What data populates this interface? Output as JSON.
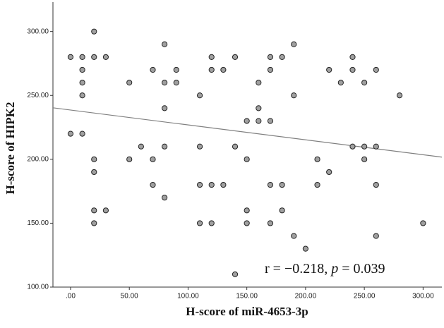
{
  "chart_data": {
    "type": "scatter",
    "x_label": "H-score of miR-4653-3p",
    "y_label": "H-score of HIPK2",
    "annotation": [
      "r = −0.218, ",
      "p",
      " = 0.039"
    ],
    "point_color": "#a0a0a0",
    "line_color": "#808080",
    "xlim": [
      -15,
      316
    ],
    "ylim": [
      100,
      323
    ],
    "xticks": [
      {
        "value": 0,
        "label": ".00"
      },
      {
        "value": 50,
        "label": "50.00"
      },
      {
        "value": 100,
        "label": "100.00"
      },
      {
        "value": 150,
        "label": "150.00"
      },
      {
        "value": 200,
        "label": "200.00"
      },
      {
        "value": 250,
        "label": "250.00"
      },
      {
        "value": 300,
        "label": "300.00"
      }
    ],
    "yticks": [
      {
        "value": 100,
        "label": "100.00"
      },
      {
        "value": 150,
        "label": "150.00"
      },
      {
        "value": 200,
        "label": "200.00"
      },
      {
        "value": 250,
        "label": "250.00"
      },
      {
        "value": 300,
        "label": "300.00"
      }
    ],
    "fit_line": {
      "x": [
        -15,
        316
      ],
      "y": [
        240.3,
        201.7
      ]
    },
    "x": [
      0,
      0,
      10,
      10,
      10,
      10,
      10,
      20,
      20,
      20,
      20,
      20,
      20,
      30,
      30,
      50,
      50,
      60,
      70,
      70,
      70,
      80,
      80,
      80,
      80,
      80,
      90,
      90,
      110,
      110,
      110,
      110,
      120,
      120,
      120,
      120,
      130,
      130,
      140,
      140,
      140,
      150,
      150,
      150,
      150,
      160,
      160,
      160,
      170,
      170,
      170,
      170,
      170,
      180,
      180,
      180,
      190,
      190,
      190,
      200,
      210,
      210,
      220,
      220,
      230,
      240,
      240,
      240,
      250,
      250,
      250,
      260,
      260,
      260,
      260,
      280,
      300
    ],
    "y": [
      280,
      220,
      280,
      270,
      260,
      250,
      220,
      300,
      280,
      200,
      190,
      160,
      150,
      280,
      160,
      260,
      200,
      210,
      270,
      200,
      180,
      290,
      260,
      240,
      210,
      170,
      270,
      260,
      250,
      210,
      180,
      150,
      280,
      270,
      180,
      150,
      270,
      180,
      280,
      210,
      110,
      230,
      200,
      160,
      150,
      260,
      240,
      230,
      280,
      270,
      230,
      180,
      150,
      280,
      180,
      160,
      290,
      250,
      140,
      130,
      200,
      180,
      270,
      190,
      260,
      280,
      270,
      210,
      260,
      210,
      200,
      270,
      210,
      180,
      140,
      250,
      150
    ]
  }
}
